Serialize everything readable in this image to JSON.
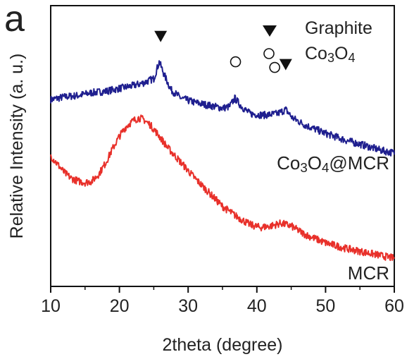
{
  "panel_label": "a",
  "chart_data": {
    "type": "line",
    "xlabel": "2theta (degree)",
    "ylabel": "Relative Intensity (a. u.)",
    "xlim": [
      10,
      60
    ],
    "xticks": [
      10,
      20,
      30,
      40,
      50,
      60
    ],
    "ylim": [
      0,
      100
    ],
    "grid": false,
    "legend": {
      "placement": "top-right",
      "entries": [
        {
          "label": "Graphite",
          "marker": "filled-down-triangle"
        },
        {
          "label": "Co3O4",
          "marker": "open-circle"
        }
      ]
    },
    "series": [
      {
        "name": "Co3O4@MCR",
        "color": "#1f1f8f",
        "x": [
          10,
          12,
          14,
          16,
          18,
          20,
          22,
          23.5,
          25,
          25.8,
          26.5,
          27.5,
          29,
          31,
          33,
          35,
          36,
          36.8,
          37.8,
          39,
          41,
          43,
          44.2,
          45.2,
          47,
          50,
          53,
          56,
          58,
          60
        ],
        "y": [
          66.5,
          67.5,
          68.0,
          69.0,
          69.5,
          70.5,
          71.5,
          72.5,
          74.0,
          80.0,
          75.5,
          70.0,
          67.0,
          65.5,
          64.5,
          63.5,
          64.0,
          67.0,
          64.0,
          61.5,
          61.0,
          61.5,
          63.0,
          60.0,
          57.5,
          54.5,
          52.0,
          50.0,
          48.5,
          47.5
        ]
      },
      {
        "name": "MCR",
        "color": "#e8302a",
        "x": [
          10,
          11,
          12,
          13,
          14,
          15,
          16,
          17,
          18,
          19,
          20,
          21,
          22,
          22.8,
          23.5,
          24.5,
          25.5,
          27,
          29,
          31,
          33,
          35,
          37,
          39,
          40.5,
          42,
          43.5,
          45,
          47,
          50,
          53,
          56,
          58,
          60
        ],
        "y": [
          46.5,
          43.5,
          40.5,
          38.5,
          37.5,
          37.0,
          37.5,
          40.0,
          44.0,
          49.0,
          53.5,
          57.0,
          59.0,
          60.0,
          59.5,
          57.5,
          54.5,
          49.5,
          44.0,
          38.5,
          33.5,
          28.5,
          25.0,
          22.0,
          21.0,
          21.5,
          22.5,
          21.5,
          18.5,
          15.5,
          13.5,
          12.0,
          11.0,
          10.0
        ]
      }
    ],
    "annotations": [
      {
        "text": "Co3O4@MCR",
        "near_series": "Co3O4@MCR",
        "placement": "right, below curve"
      },
      {
        "text": "MCR",
        "near_series": "MCR",
        "placement": "right, below curve"
      }
    ],
    "peak_markers": [
      {
        "x": 26.0,
        "y": 89.0,
        "marker": "filled-down-triangle",
        "phase": "Graphite"
      },
      {
        "x": 44.2,
        "y": 79.0,
        "marker": "filled-down-triangle",
        "phase": "Graphite"
      },
      {
        "x": 36.9,
        "y": 80.0,
        "marker": "open-circle",
        "phase": "Co3O4"
      },
      {
        "x": 42.6,
        "y": 78.0,
        "marker": "open-circle",
        "phase": "Co3O4"
      }
    ]
  }
}
